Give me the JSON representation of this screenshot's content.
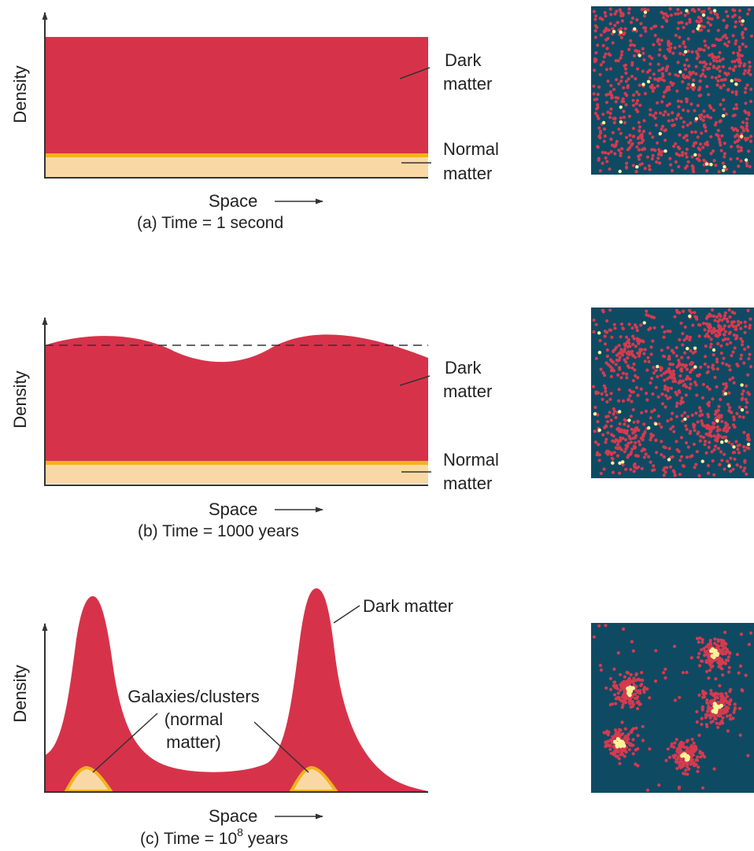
{
  "colors": {
    "dark_matter": "#d6334a",
    "normal_matter_fill": "#fad8a6",
    "normal_matter_edge": "#f3b21b",
    "sim_background": "#0f4a63",
    "sim_dark_particle": "#d63a4f",
    "sim_normal_particle": "#fbf59a",
    "axis": "#333333"
  },
  "panels": [
    {
      "id": "a",
      "y_axis_label": "Density",
      "x_axis_label": "Space",
      "caption": "(a) Time = 1 second",
      "dark_label": [
        "Dark",
        "matter"
      ],
      "normal_label": [
        "Normal",
        "matter"
      ],
      "dark_profile": "flat",
      "normal_profile": "flat",
      "sim_state": "uniform"
    },
    {
      "id": "b",
      "y_axis_label": "Density",
      "x_axis_label": "Space",
      "caption": "(b) Time = 1000 years",
      "dark_label": [
        "Dark",
        "matter"
      ],
      "normal_label": [
        "Normal",
        "matter"
      ],
      "dark_profile": "small ripples about the original level (dashed line)",
      "normal_profile": "flat",
      "sim_state": "slightly clumped"
    },
    {
      "id": "c",
      "y_axis_label": "Density",
      "x_axis_label": "Space",
      "caption_main": "(c) Time = 10",
      "caption_exp": "8",
      "caption_tail": " years",
      "dark_label": "Dark matter",
      "normal_label": [
        "Galaxies/clusters",
        "(normal",
        "matter)"
      ],
      "dark_profile": "two tall peaks",
      "normal_profile": "small bumps under the peaks",
      "sim_state": "clustered"
    }
  ]
}
